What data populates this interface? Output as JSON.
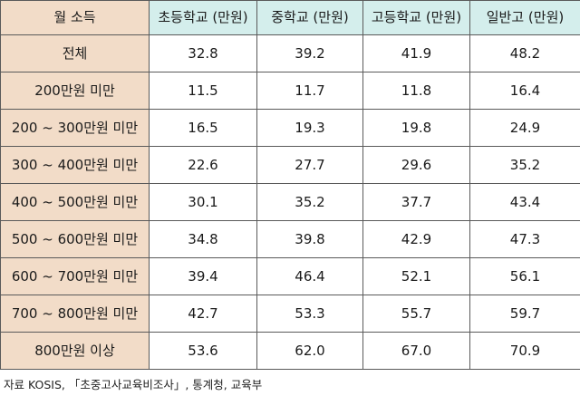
{
  "chart_data": {
    "type": "table",
    "columns": [
      "월 소득",
      "초등학교 (만원)",
      "중학교 (만원)",
      "고등학교 (만원)",
      "일반고 (만원)"
    ],
    "rows": [
      {
        "label": "전체",
        "values": [
          "32.8",
          "39.2",
          "41.9",
          "48.2"
        ]
      },
      {
        "label": "200만원 미만",
        "values": [
          "11.5",
          "11.7",
          "11.8",
          "16.4"
        ]
      },
      {
        "label": "200 ~ 300만원 미만",
        "values": [
          "16.5",
          "19.3",
          "19.8",
          "24.9"
        ]
      },
      {
        "label": "300 ~ 400만원 미만",
        "values": [
          "22.6",
          "27.7",
          "29.6",
          "35.2"
        ]
      },
      {
        "label": "400 ~ 500만원 미만",
        "values": [
          "30.1",
          "35.2",
          "37.7",
          "43.4"
        ]
      },
      {
        "label": "500 ~ 600만원 미만",
        "values": [
          "34.8",
          "39.8",
          "42.9",
          "47.3"
        ]
      },
      {
        "label": "600 ~ 700만원 미만",
        "values": [
          "39.4",
          "46.4",
          "52.1",
          "56.1"
        ]
      },
      {
        "label": "700 ~ 800만원 미만",
        "values": [
          "42.7",
          "53.3",
          "55.7",
          "59.7"
        ]
      },
      {
        "label": "800만원 이상",
        "values": [
          "53.6",
          "62.0",
          "67.0",
          "70.9"
        ]
      }
    ],
    "source": "자료 KOSIS, 「초중고사교육비조사」, 통계청, 교육부"
  },
  "colors": {
    "header_first_bg": "#f2dcc8",
    "header_other_bg": "#d4eeec",
    "row_label_bg": "#f2dcc8",
    "border": "#5a5a5a"
  }
}
